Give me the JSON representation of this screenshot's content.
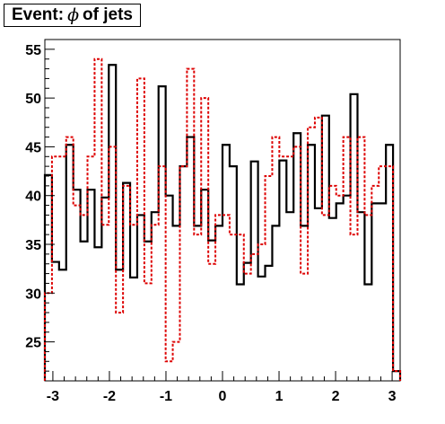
{
  "title": {
    "prefix": "Event:",
    "symbol": "ϕ",
    "suffix": "of jets"
  },
  "chart_data": {
    "type": "histogram",
    "xlim": [
      -3.1416,
      3.1416
    ],
    "ylim": [
      21,
      56
    ],
    "bins": 50,
    "xticks": [
      -3,
      -2,
      -1,
      0,
      1,
      2,
      3
    ],
    "xtick_labels": [
      "-3",
      "-2",
      "-1",
      "0",
      "1",
      "2",
      "3"
    ],
    "yticks": [
      25,
      30,
      35,
      40,
      45,
      50,
      55
    ],
    "ytick_labels": [
      "25",
      "30",
      "35",
      "40",
      "45",
      "50",
      "55"
    ],
    "series": [
      {
        "style": "solid",
        "color": "#000000",
        "values": [
          42.1,
          33.2,
          32.4,
          45.2,
          40.6,
          35.3,
          40.6,
          34.7,
          39.8,
          53.4,
          32.4,
          41.3,
          31.6,
          38.0,
          35.3,
          38.3,
          51.2,
          40.0,
          36.9,
          43.0,
          46.0,
          36.9,
          40.6,
          35.4,
          36.9,
          45.2,
          43.0,
          30.9,
          33.1,
          43.5,
          31.7,
          32.8,
          36.9,
          43.6,
          38.3,
          46.4,
          36.9,
          45.2,
          38.7,
          48.2,
          37.7,
          39.2,
          40.0,
          50.4,
          38.3,
          30.9,
          39.2,
          39.2,
          45.2,
          22.0
        ]
      },
      {
        "style": "dashed",
        "color": "#dd0000",
        "values": [
          30.0,
          44.0,
          44.0,
          46.0,
          39.0,
          38.0,
          44.0,
          54.0,
          37.0,
          45.0,
          28.0,
          41.0,
          37.0,
          52.0,
          31.0,
          37.0,
          43.0,
          23.0,
          25.0,
          43.0,
          53.0,
          36.0,
          50.0,
          33.0,
          38.0,
          38.0,
          36.0,
          36.0,
          32.0,
          34.0,
          35.0,
          42.0,
          46.0,
          44.0,
          44.0,
          45.0,
          32.0,
          47.0,
          48.0,
          38.0,
          41.0,
          40.0,
          46.0,
          36.0,
          46.0,
          38.0,
          41.0,
          43.0,
          43.0,
          22.0
        ]
      }
    ],
    "grid": false
  },
  "colors": {
    "axis": "#000000",
    "background": "#ffffff"
  }
}
